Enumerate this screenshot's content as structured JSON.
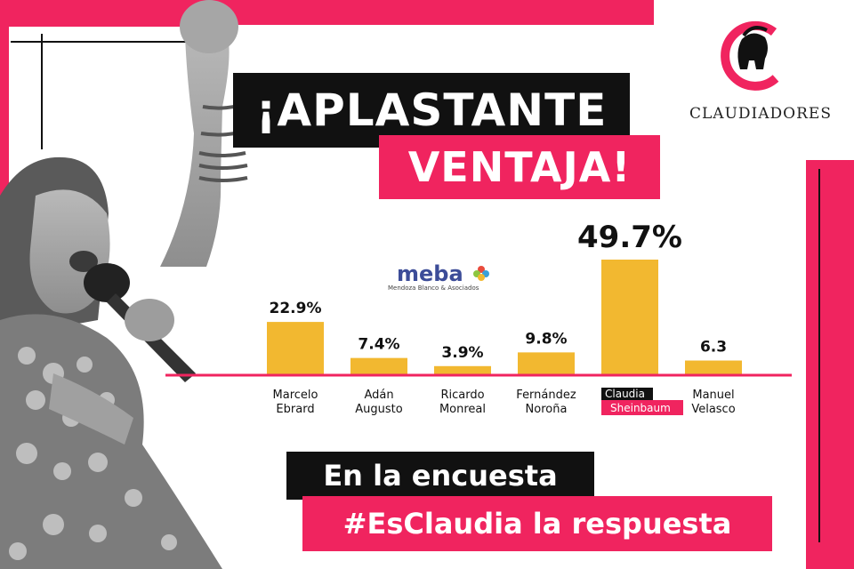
{
  "headline": {
    "line1": "¡APLASTANTE",
    "line2": "VENTAJA!"
  },
  "brand": {
    "name": "CLAUDIADORES"
  },
  "source_logo": {
    "name": "meba",
    "subtitle": "Mendoza Blanco & Asociados"
  },
  "footer": {
    "line1": "En la encuesta",
    "line2": "#EsClaudia la respuesta"
  },
  "colors": {
    "accent": "#f0245f",
    "bar": "#f2b830",
    "dark": "#111111"
  },
  "icons": {
    "logo": "spartan-helmet-c-logo",
    "photo": "woman-raised-fist-microphone"
  },
  "chart_data": {
    "type": "bar",
    "categories": [
      {
        "line1": "Marcelo",
        "line2": "Ebrard"
      },
      {
        "line1": "Adán",
        "line2": "Augusto"
      },
      {
        "line1": "Ricardo",
        "line2": "Monreal"
      },
      {
        "line1": "Fernández",
        "line2": "Noroña"
      },
      {
        "line1": "Claudia",
        "line2": "Sheinbaum",
        "highlight": true
      },
      {
        "line1": "Manuel",
        "line2": "Velasco"
      }
    ],
    "values": [
      22.9,
      7.4,
      3.9,
      9.8,
      49.7,
      6.3
    ],
    "value_labels": [
      "22.9%",
      "7.4%",
      "3.9%",
      "9.8%",
      "49.7%",
      "6.3"
    ],
    "title": "",
    "xlabel": "",
    "ylabel": "",
    "ylim": [
      0,
      49.7
    ],
    "grid": false,
    "legend": "none"
  }
}
